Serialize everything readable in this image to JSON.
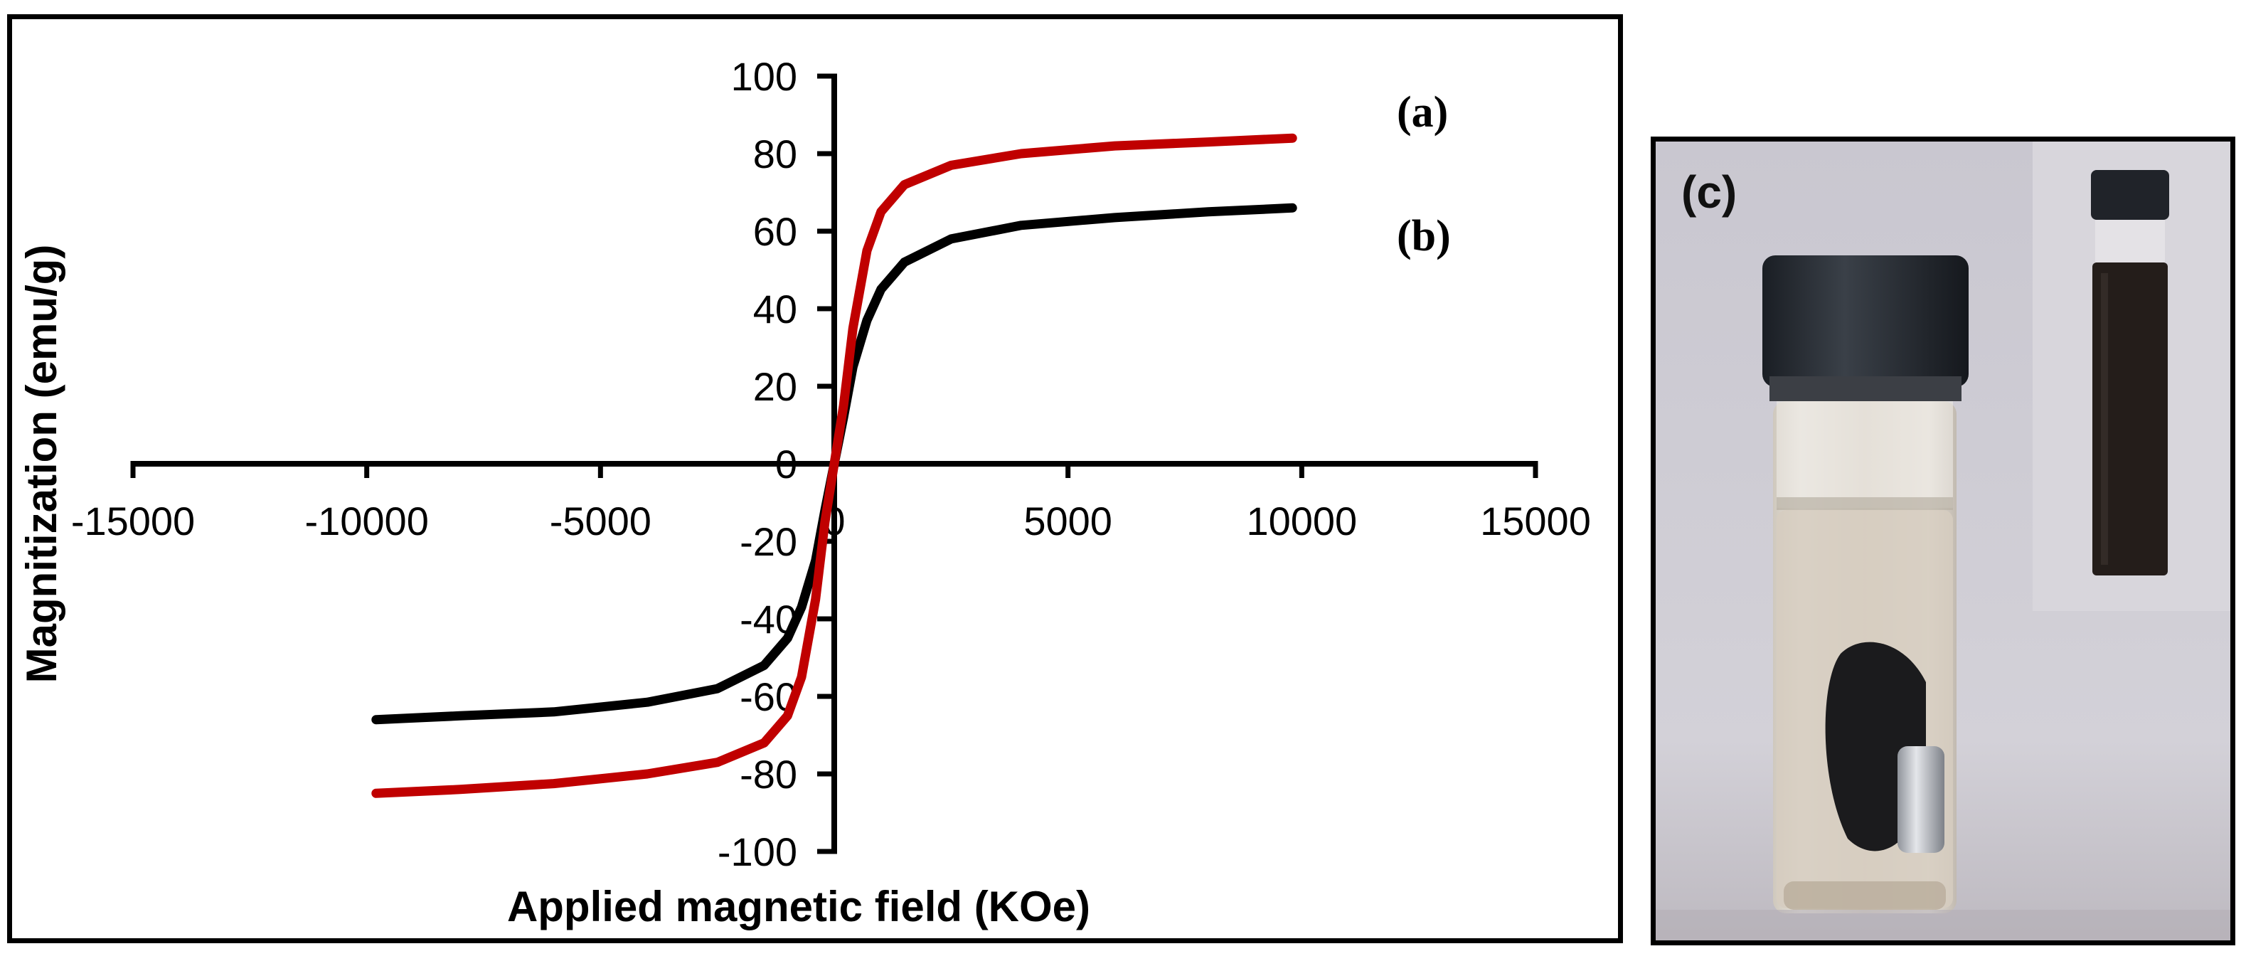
{
  "chart_data": {
    "type": "line",
    "title": "",
    "xlabel": "Applied magnetic field (KOe)",
    "ylabel": "Magnitization (emu/g)",
    "xlim": [
      -15000,
      15000
    ],
    "ylim": [
      -100,
      100
    ],
    "x_ticks": [
      -15000,
      -10000,
      -5000,
      0,
      5000,
      10000,
      15000
    ],
    "y_ticks": [
      -100,
      -80,
      -60,
      -40,
      -20,
      0,
      20,
      40,
      60,
      80,
      100
    ],
    "x_tick_labels": [
      "-15000",
      "-10000",
      "-5000",
      "0",
      "5000",
      "10000",
      "15000"
    ],
    "y_tick_labels": [
      "-100",
      "-80",
      "-60",
      "-40",
      "-20",
      "0",
      "20",
      "40",
      "60",
      "80",
      "100"
    ],
    "grid": false,
    "series": [
      {
        "name": "(a)",
        "color": "#c00000",
        "x": [
          -9800,
          -8000,
          -6000,
          -4000,
          -2500,
          -1500,
          -1000,
          -700,
          -400,
          -200,
          0,
          200,
          400,
          700,
          1000,
          1500,
          2500,
          4000,
          6000,
          8000,
          9800
        ],
        "y": [
          -85,
          -84,
          -82.5,
          -80,
          -77,
          -72,
          -65,
          -55,
          -35,
          -15,
          0,
          15,
          35,
          55,
          65,
          72,
          77,
          80,
          82,
          83,
          84
        ]
      },
      {
        "name": "(b)",
        "color": "#000000",
        "x": [
          -9800,
          -8000,
          -6000,
          -4000,
          -2500,
          -1500,
          -1000,
          -700,
          -400,
          -200,
          0,
          200,
          400,
          700,
          1000,
          1500,
          2500,
          4000,
          6000,
          8000,
          9800
        ],
        "y": [
          -66,
          -65,
          -64,
          -61.5,
          -58,
          -52,
          -45,
          -37,
          -25,
          -12,
          0,
          12,
          25,
          37,
          45,
          52,
          58,
          61.5,
          63.5,
          65,
          66
        ]
      }
    ],
    "annotations": [
      "(a)",
      "(b)"
    ]
  },
  "photo": {
    "label": "(c)"
  }
}
